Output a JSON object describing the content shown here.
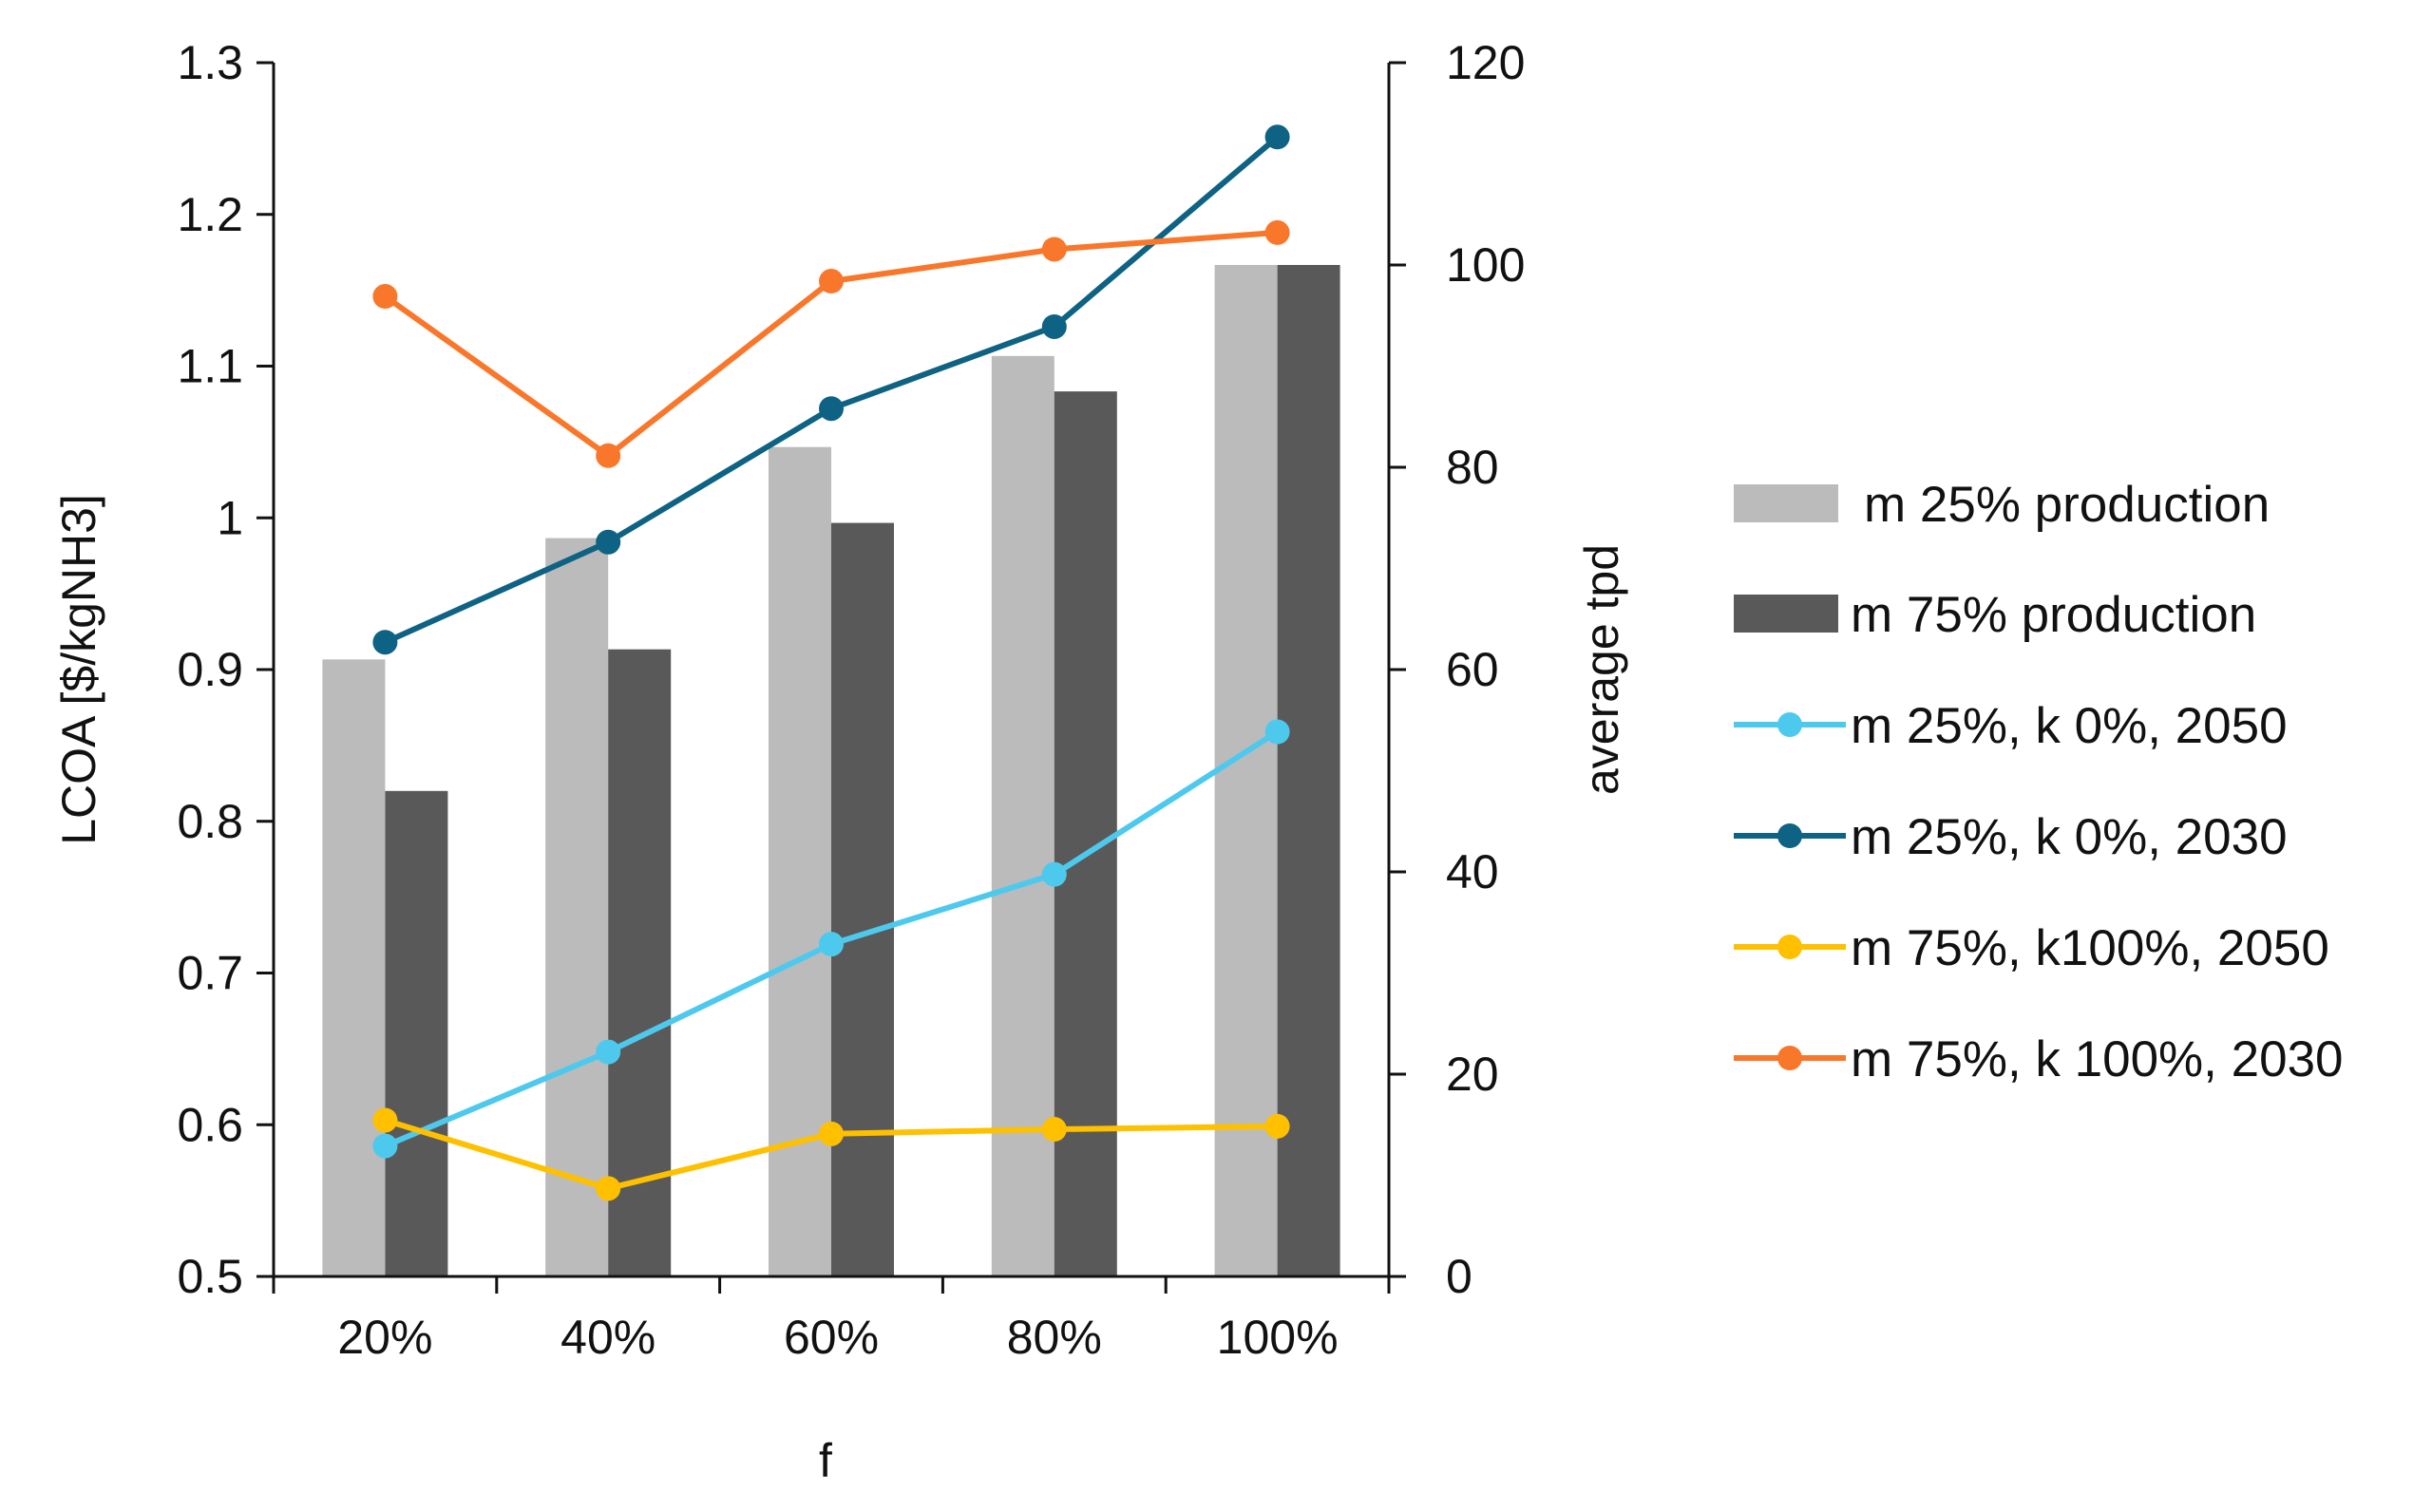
{
  "chart_data": {
    "type": "bar+line",
    "xlabel": "f",
    "ylabel_left": "LCOA [$/kgNH3]",
    "ylabel_right": "average tpd",
    "categories": [
      "20%",
      "40%",
      "60%",
      "80%",
      "100%"
    ],
    "ylim_left": [
      0.5,
      1.3
    ],
    "ylim_right": [
      0,
      120
    ],
    "yticks_left": [
      "0.5",
      "0.6",
      "0.7",
      "0.8",
      "0.9",
      "1",
      "1.1",
      "1.2",
      "1.3"
    ],
    "yticks_right": [
      "0",
      "20",
      "40",
      "60",
      "80",
      "100",
      "120"
    ],
    "legend_position": "right",
    "bar_series": [
      {
        "name": "m 25% production",
        "axis": "right",
        "color": "#bbbbbb",
        "values": [
          61,
          73,
          82,
          91,
          100
        ]
      },
      {
        "name": "m 75% production",
        "axis": "right",
        "color": "#595959",
        "values": [
          48,
          62,
          74.5,
          87.5,
          100
        ]
      }
    ],
    "line_series": [
      {
        "name": "m 25%, k 0%, 2050",
        "axis": "left",
        "color": "#4ec9ee",
        "values": [
          0.586,
          0.648,
          0.719,
          0.765,
          0.859
        ]
      },
      {
        "name": "m 25%, k 0%, 2030",
        "axis": "left",
        "color": "#0e6283",
        "values": [
          0.918,
          0.984,
          1.072,
          1.126,
          1.251
        ]
      },
      {
        "name": "m 75%, k100%, 2050",
        "axis": "left",
        "color": "#ffc000",
        "values": [
          0.603,
          0.558,
          0.594,
          0.597,
          0.599
        ]
      },
      {
        "name": "m 75%, k 100%, 2030",
        "axis": "left",
        "color": "#f9772a",
        "values": [
          1.146,
          1.041,
          1.156,
          1.177,
          1.188
        ]
      }
    ]
  }
}
